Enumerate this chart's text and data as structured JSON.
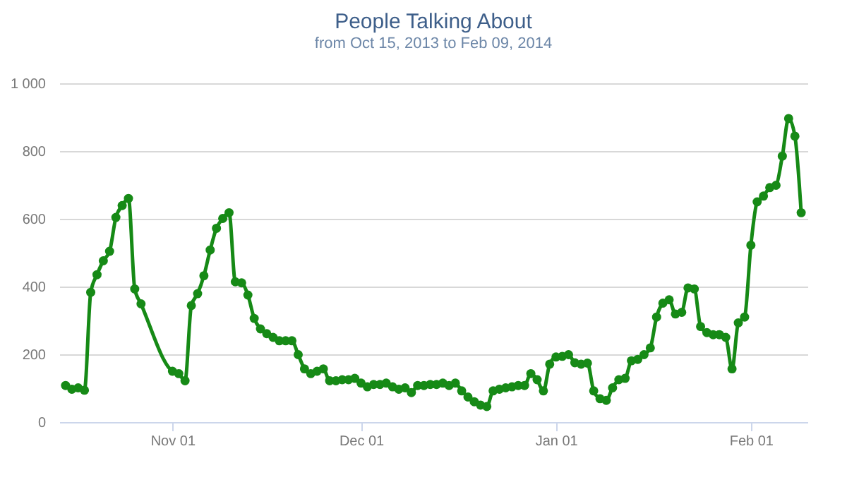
{
  "chart_data": {
    "type": "line",
    "title": "People Talking About",
    "subtitle": "from Oct 15, 2013 to Feb 09, 2014",
    "x": [
      "2013-10-15",
      "2013-10-16",
      "2013-10-17",
      "2013-10-18",
      "2013-10-19",
      "2013-10-20",
      "2013-10-21",
      "2013-10-22",
      "2013-10-23",
      "2013-10-24",
      "2013-10-25",
      "2013-10-26",
      "2013-10-27",
      "2013-11-01",
      "2013-11-02",
      "2013-11-03",
      "2013-11-04",
      "2013-11-05",
      "2013-11-06",
      "2013-11-07",
      "2013-11-08",
      "2013-11-09",
      "2013-11-10",
      "2013-11-11",
      "2013-11-12",
      "2013-11-13",
      "2013-11-14",
      "2013-11-15",
      "2013-11-16",
      "2013-11-17",
      "2013-11-18",
      "2013-11-19",
      "2013-11-20",
      "2013-11-21",
      "2013-11-22",
      "2013-11-23",
      "2013-11-24",
      "2013-11-25",
      "2013-11-26",
      "2013-11-27",
      "2013-11-28",
      "2013-11-29",
      "2013-11-30",
      "2013-12-01",
      "2013-12-02",
      "2013-12-03",
      "2013-12-04",
      "2013-12-05",
      "2013-12-06",
      "2013-12-07",
      "2013-12-08",
      "2013-12-09",
      "2013-12-10",
      "2013-12-11",
      "2013-12-12",
      "2013-12-13",
      "2013-12-14",
      "2013-12-15",
      "2013-12-16",
      "2013-12-17",
      "2013-12-18",
      "2013-12-19",
      "2013-12-20",
      "2013-12-21",
      "2013-12-22",
      "2013-12-23",
      "2013-12-24",
      "2013-12-25",
      "2013-12-26",
      "2013-12-27",
      "2013-12-28",
      "2013-12-29",
      "2013-12-30",
      "2013-12-31",
      "2014-01-01",
      "2014-01-02",
      "2014-01-03",
      "2014-01-04",
      "2014-01-05",
      "2014-01-06",
      "2014-01-07",
      "2014-01-08",
      "2014-01-09",
      "2014-01-10",
      "2014-01-11",
      "2014-01-12",
      "2014-01-13",
      "2014-01-14",
      "2014-01-15",
      "2014-01-16",
      "2014-01-17",
      "2014-01-18",
      "2014-01-19",
      "2014-01-20",
      "2014-01-21",
      "2014-01-22",
      "2014-01-23",
      "2014-01-24",
      "2014-01-25",
      "2014-01-26",
      "2014-01-27",
      "2014-01-28",
      "2014-01-29",
      "2014-01-30",
      "2014-01-31",
      "2014-02-01",
      "2014-02-02",
      "2014-02-03",
      "2014-02-04",
      "2014-02-05",
      "2014-02-06",
      "2014-02-07",
      "2014-02-08",
      "2014-02-09"
    ],
    "series": [
      {
        "color": "#168a16",
        "values": [
          108,
          97,
          101,
          94,
          383,
          435,
          476,
          504,
          604,
          639,
          660,
          393,
          349,
          150,
          143,
          122,
          344,
          379,
          432,
          508,
          572,
          601,
          618,
          414,
          411,
          375,
          306,
          275,
          261,
          250,
          240,
          240,
          240,
          199,
          157,
          143,
          150,
          157,
          122,
          122,
          125,
          125,
          129,
          115,
          104,
          111,
          111,
          115,
          104,
          97,
          101,
          87,
          108,
          108,
          111,
          111,
          115,
          108,
          115,
          92,
          74,
          60,
          50,
          46,
          92,
          97,
          101,
          104,
          108,
          108,
          143,
          125,
          92,
          171,
          192,
          194,
          199,
          175,
          171,
          174,
          92,
          69,
          64,
          101,
          125,
          129,
          181,
          185,
          199,
          219,
          310,
          351,
          361,
          319,
          324,
          396,
          393,
          282,
          264,
          258,
          258,
          250,
          157,
          293,
          310,
          522,
          650,
          667,
          692,
          699,
          785,
          896,
          844,
          618
        ]
      }
    ],
    "xlim": [
      "2013-10-14",
      "2014-02-10"
    ],
    "xticks": [
      {
        "value": "2013-11-01",
        "label": "Nov 01"
      },
      {
        "value": "2013-12-01",
        "label": "Dec 01"
      },
      {
        "value": "2014-01-01",
        "label": "Jan 01"
      },
      {
        "value": "2014-02-01",
        "label": "Feb 01"
      }
    ],
    "ylim": [
      0,
      1000
    ],
    "yticks": [
      0,
      200,
      400,
      600,
      800,
      {
        "value": 1000,
        "label": "1 000"
      }
    ],
    "grid": "y",
    "marker": "circle",
    "line_style": "solid"
  }
}
